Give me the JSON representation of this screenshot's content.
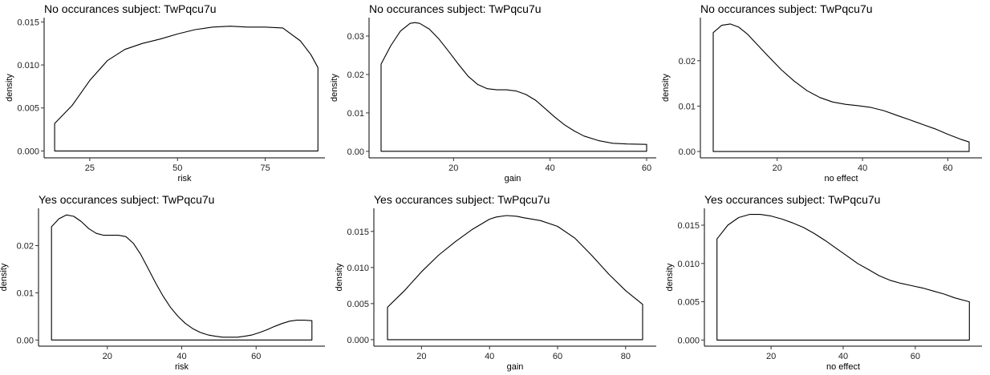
{
  "chart_data": [
    {
      "type": "area",
      "title": "No occurances subject:  TwPqcu7u",
      "xlabel": "risk",
      "ylabel": "density",
      "xlim": [
        12,
        92
      ],
      "ylim": [
        -0.0008,
        0.0155
      ],
      "xticks": [
        25,
        50,
        75
      ],
      "xtick_labels": [
        "25",
        "50",
        "75"
      ],
      "yticks": [
        0,
        0.005,
        0.01,
        0.015
      ],
      "ytick_labels": [
        "0.000",
        "0.005",
        "0.010",
        "0.015"
      ],
      "grid": false,
      "legend": "none",
      "series": [
        {
          "x": [
            15,
            20,
            25,
            30,
            35,
            40,
            45,
            50,
            55,
            60,
            65,
            70,
            75,
            80,
            85,
            88,
            90
          ],
          "y": [
            0.0032,
            0.0053,
            0.0082,
            0.0105,
            0.0118,
            0.0125,
            0.013,
            0.0136,
            0.0141,
            0.0144,
            0.0145,
            0.0144,
            0.0144,
            0.0143,
            0.0128,
            0.0112,
            0.0097
          ]
        }
      ]
    },
    {
      "type": "area",
      "title": "No occurances subject:  TwPqcu7u",
      "xlabel": "gain",
      "ylabel": "density",
      "xlim": [
        2.5,
        62
      ],
      "ylim": [
        -0.0017,
        0.0348
      ],
      "xticks": [
        20,
        40,
        60
      ],
      "xtick_labels": [
        "20",
        "40",
        "60"
      ],
      "yticks": [
        0,
        0.01,
        0.02,
        0.03
      ],
      "ytick_labels": [
        "0.00",
        "0.01",
        "0.02",
        "0.03"
      ],
      "grid": false,
      "legend": "none",
      "series": [
        {
          "x": [
            5,
            7,
            9,
            11,
            12,
            13,
            15,
            17,
            19,
            21,
            23,
            25,
            27,
            29,
            31,
            33,
            35,
            37,
            39,
            41,
            43,
            45,
            47,
            50,
            53,
            56,
            60
          ],
          "y": [
            0.0227,
            0.0275,
            0.0313,
            0.0333,
            0.0335,
            0.0333,
            0.0318,
            0.0292,
            0.026,
            0.0227,
            0.0196,
            0.0174,
            0.0163,
            0.016,
            0.016,
            0.0157,
            0.0148,
            0.0133,
            0.0111,
            0.0089,
            0.0069,
            0.0053,
            0.004,
            0.0028,
            0.0021,
            0.0019,
            0.0018
          ]
        }
      ]
    },
    {
      "type": "area",
      "title": "No occurances subject:  TwPqcu7u",
      "xlabel": "no effect",
      "ylabel": "density",
      "xlim": [
        2,
        68
      ],
      "ylim": [
        -0.0014,
        0.0295
      ],
      "xticks": [
        20,
        40,
        60
      ],
      "xtick_labels": [
        "20",
        "40",
        "60"
      ],
      "yticks": [
        0,
        0.01,
        0.02
      ],
      "ytick_labels": [
        "0.00",
        "0.01",
        "0.02"
      ],
      "grid": false,
      "legend": "none",
      "series": [
        {
          "x": [
            5,
            7,
            9,
            11,
            13,
            15,
            18,
            21,
            24,
            27,
            30,
            33,
            36,
            39,
            42,
            45,
            48,
            51,
            54,
            57,
            60,
            63,
            65
          ],
          "y": [
            0.0262,
            0.0278,
            0.0281,
            0.0274,
            0.0259,
            0.0239,
            0.0209,
            0.018,
            0.0155,
            0.0134,
            0.0119,
            0.0109,
            0.0104,
            0.0101,
            0.0097,
            0.009,
            0.008,
            0.007,
            0.006,
            0.005,
            0.0038,
            0.0027,
            0.0021
          ]
        }
      ]
    },
    {
      "type": "area",
      "title": "Yes occurances subject:  TwPqcu7u",
      "xlabel": "risk",
      "ylabel": "density",
      "xlim": [
        1.5,
        78.5
      ],
      "ylim": [
        -0.0013,
        0.0279
      ],
      "xticks": [
        20,
        40,
        60
      ],
      "xtick_labels": [
        "20",
        "40",
        "60"
      ],
      "yticks": [
        0,
        0.01,
        0.02
      ],
      "ytick_labels": [
        "0.00",
        "0.01",
        "0.02"
      ],
      "grid": false,
      "legend": "none",
      "series": [
        {
          "x": [
            5,
            7,
            9,
            11,
            13,
            15,
            17,
            19,
            21,
            23,
            25,
            27,
            29,
            31,
            33,
            35,
            37,
            39,
            41,
            43,
            45,
            47,
            49,
            51,
            53,
            55,
            57,
            59,
            61,
            63,
            65,
            67,
            69,
            71,
            73,
            75
          ],
          "y": [
            0.024,
            0.0257,
            0.0265,
            0.0262,
            0.0251,
            0.0236,
            0.0226,
            0.0222,
            0.0222,
            0.0222,
            0.0219,
            0.0205,
            0.0181,
            0.0151,
            0.0121,
            0.0093,
            0.0069,
            0.005,
            0.0035,
            0.0024,
            0.0016,
            0.0011,
            0.0008,
            0.0006,
            0.0006,
            0.0006,
            0.0008,
            0.0011,
            0.0016,
            0.0022,
            0.0029,
            0.0035,
            0.004,
            0.0042,
            0.0042,
            0.0041
          ]
        }
      ]
    },
    {
      "type": "area",
      "title": "Yes occurances subject:  TwPqcu7u",
      "xlabel": "gain",
      "ylabel": "density",
      "xlim": [
        6,
        89
      ],
      "ylim": [
        -0.0009,
        0.0182
      ],
      "xticks": [
        20,
        40,
        60,
        80
      ],
      "xtick_labels": [
        "20",
        "40",
        "60",
        "80"
      ],
      "yticks": [
        0,
        0.005,
        0.01,
        0.015
      ],
      "ytick_labels": [
        "0.000",
        "0.005",
        "0.010",
        "0.015"
      ],
      "grid": false,
      "legend": "none",
      "series": [
        {
          "x": [
            10,
            15,
            20,
            25,
            30,
            35,
            40,
            42,
            45,
            48,
            50,
            55,
            60,
            65,
            70,
            75,
            80,
            85
          ],
          "y": [
            0.0045,
            0.0068,
            0.0094,
            0.0117,
            0.0136,
            0.0153,
            0.0167,
            0.017,
            0.0172,
            0.0171,
            0.0169,
            0.0165,
            0.0157,
            0.0141,
            0.0117,
            0.0091,
            0.0068,
            0.0049
          ]
        }
      ]
    },
    {
      "type": "area",
      "title": "Yes occurances subject:  TwPqcu7u",
      "xlabel": "no effect",
      "ylabel": "density",
      "xlim": [
        1.5,
        78.5
      ],
      "ylim": [
        -0.0008,
        0.0172
      ],
      "xticks": [
        20,
        40,
        60
      ],
      "xtick_labels": [
        "20",
        "40",
        "60"
      ],
      "yticks": [
        0,
        0.005,
        0.01,
        0.015
      ],
      "ytick_labels": [
        "0.000",
        "0.005",
        "0.010",
        "0.015"
      ],
      "grid": false,
      "legend": "none",
      "series": [
        {
          "x": [
            5,
            8,
            11,
            14,
            17,
            20,
            23,
            26,
            29,
            32,
            35,
            38,
            41,
            44,
            47,
            50,
            53,
            56,
            59,
            62,
            65,
            68,
            71,
            75
          ],
          "y": [
            0.0132,
            0.015,
            0.016,
            0.0164,
            0.0164,
            0.0162,
            0.0158,
            0.0153,
            0.0147,
            0.0139,
            0.013,
            0.012,
            0.011,
            0.01,
            0.0092,
            0.0084,
            0.0078,
            0.0074,
            0.0071,
            0.0068,
            0.0064,
            0.006,
            0.0055,
            0.005
          ]
        }
      ]
    }
  ]
}
